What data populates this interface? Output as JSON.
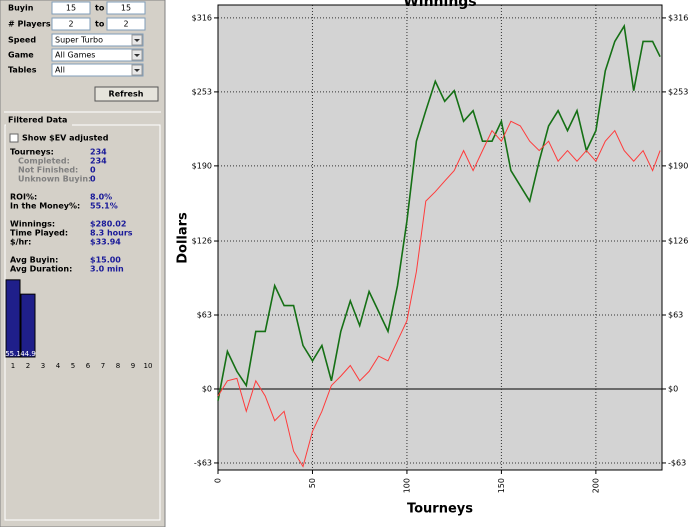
{
  "panel": {
    "form": [
      {
        "label": "Buyin",
        "from": "15",
        "to_label": "to",
        "to": "15"
      },
      {
        "label": "# Players",
        "from": "2",
        "to_label": "to",
        "to": "2"
      }
    ],
    "selects": [
      {
        "label": "Speed",
        "value": "Super Turbo"
      },
      {
        "label": "Game",
        "value": "All Games"
      },
      {
        "label": "Tables",
        "value": "All"
      }
    ],
    "button": "Refresh",
    "group_title": "Filtered Data",
    "checkbox": "Show $EV adjusted",
    "stats": [
      {
        "label": "Tourneys:",
        "value": "234"
      },
      {
        "label": "Completed:",
        "value": "234"
      },
      {
        "label": "Not Finished:",
        "value": "0"
      },
      {
        "label": "Unknown Buyin:",
        "value": "0"
      },
      {
        "label": "ROI%:",
        "value": "8.0%"
      },
      {
        "label": "In the Money%:",
        "value": "55.1%"
      },
      {
        "label": "Winnings:",
        "value": "$280.02"
      },
      {
        "label": "Time Played:",
        "value": "8.3 hours"
      },
      {
        "label": "$/hr:",
        "value": "$33.94"
      },
      {
        "label": "Avg Buyin:",
        "value": "$15.00"
      },
      {
        "label": "Avg Duration:",
        "value": "3.0 min"
      }
    ]
  },
  "chart_data": [
    {
      "type": "line",
      "title": "Winnings",
      "xlabel": "Tourneys",
      "ylabel": "Dollars",
      "x": [
        0,
        5,
        10,
        15,
        20,
        25,
        30,
        35,
        40,
        45,
        50,
        55,
        60,
        65,
        70,
        75,
        80,
        85,
        90,
        95,
        100,
        105,
        110,
        115,
        120,
        125,
        130,
        135,
        140,
        145,
        150,
        155,
        160,
        165,
        170,
        175,
        180,
        185,
        190,
        195,
        200,
        205,
        210,
        215,
        220,
        225,
        230,
        234
      ],
      "series": [
        {
          "color": "#157015",
          "values": [
            -10,
            32,
            15,
            3,
            49,
            49,
            88,
            71,
            71,
            37,
            24,
            37,
            7,
            49,
            75,
            54,
            83,
            66,
            49,
            88,
            143,
            211,
            237,
            262,
            245,
            254,
            228,
            237,
            211,
            211,
            228,
            186,
            173,
            160,
            194,
            224,
            237,
            220,
            237,
            203,
            220,
            271,
            296,
            309,
            254,
            296,
            296,
            283
          ]
        },
        {
          "color": "#ff3b3b",
          "values": [
            -6,
            7,
            9,
            -19,
            7,
            -6,
            -27,
            -19,
            -53,
            -66,
            -36,
            -19,
            3,
            11,
            20,
            7,
            15,
            28,
            24,
            41,
            58,
            100,
            160,
            168,
            177,
            186,
            203,
            186,
            203,
            220,
            211,
            228,
            224,
            211,
            203,
            211,
            194,
            203,
            194,
            203,
            194,
            211,
            220,
            203,
            194,
            203,
            186,
            203
          ]
        }
      ],
      "xlim": [
        0,
        235
      ],
      "xticks": [
        0,
        50,
        100,
        150,
        200
      ],
      "ylim": [
        -69,
        327
      ],
      "yticks": [
        {
          "value": -63,
          "label": "-$63"
        },
        {
          "value": 0,
          "label": "$0"
        },
        {
          "value": 63,
          "label": "$63"
        },
        {
          "value": 126,
          "label": "$126"
        },
        {
          "value": 190,
          "label": "$190"
        },
        {
          "value": 253,
          "label": "$253"
        },
        {
          "value": 316,
          "label": "$316"
        }
      ],
      "grid": true
    },
    {
      "type": "bar",
      "categories": [
        "1",
        "2",
        "3",
        "4",
        "5",
        "6",
        "7",
        "8",
        "9",
        "10"
      ],
      "values": [
        55.1,
        44.9,
        null,
        null,
        null,
        null,
        null,
        null,
        null,
        null
      ],
      "color": "#1f1f8a",
      "ylim": [
        0,
        60
      ]
    }
  ]
}
